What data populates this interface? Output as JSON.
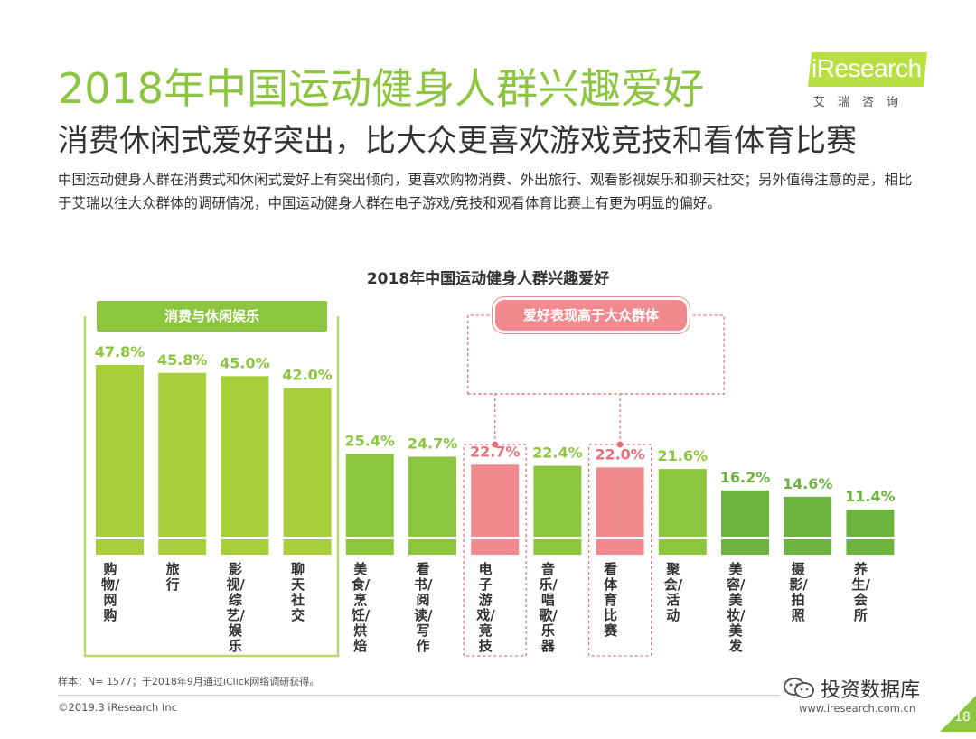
{
  "header": {
    "title": "2018年中国运动健身人群兴趣爱好",
    "subtitle": "消费休闲式爱好突出，比大众更喜欢游戏竞技和看体育比赛",
    "description": "中国运动健身人群在消费式和休闲式爱好上有突出倾向，更喜欢购物消费、外出旅行、观看影视娱乐和聊天社交；另外值得注意的是，相比于艾瑞以往大众群体的调研情况，中国运动健身人群在电子游戏/竞技和观看体育比赛上有更为明显的偏好。"
  },
  "logo": {
    "text": "iResearch",
    "sub": "艾瑞咨询"
  },
  "chart_data": {
    "type": "bar",
    "title": "2018年中国运动健身人群兴趣爱好",
    "categories": [
      "购物/网购",
      "旅行",
      "影视/综艺/娱乐",
      "聊天社交",
      "美食/烹饪/烘焙",
      "看书/阅读/写作",
      "电子游戏/竞技",
      "音乐/唱歌/乐器",
      "看体育比赛",
      "聚会/活动",
      "美容/美妆/美发",
      "摄影/拍照",
      "养生/会所"
    ],
    "values": [
      47.8,
      45.8,
      45.0,
      42.0,
      25.4,
      24.7,
      22.7,
      22.4,
      22.0,
      21.6,
      16.2,
      14.6,
      11.4
    ],
    "value_labels": [
      "47.8%",
      "45.8%",
      "45.0%",
      "42.0%",
      "25.4%",
      "24.7%",
      "22.7%",
      "22.4%",
      "22.0%",
      "21.6%",
      "16.2%",
      "14.6%",
      "11.4%"
    ],
    "groups": [
      "leisure",
      "leisure",
      "leisure",
      "leisure",
      "other",
      "other",
      "highlight",
      "other",
      "highlight",
      "other",
      "dark",
      "dark",
      "dark"
    ],
    "annotations": {
      "leisure_label": "消费与休闲娱乐",
      "highlight_label": "爱好表现高于大众群体"
    },
    "colors": {
      "leisure": "#a6cf3a",
      "other": "#8cc63f",
      "highlight": "#f08a8e",
      "dark": "#6cb33f",
      "leisure_text": "#8cc63f",
      "highlight_text": "#e8707a",
      "dark_text": "#6cb33f"
    },
    "ylim": [
      0,
      50
    ],
    "grid": false,
    "legend": "none"
  },
  "footer": {
    "note": "样本：N= 1577；于2018年9月通过iClick网络调研获得。",
    "copyright": "©2019.3 iResearch Inc",
    "website": "www.iresearch.com.cn",
    "page": "18",
    "watermark": "投资数据库"
  }
}
